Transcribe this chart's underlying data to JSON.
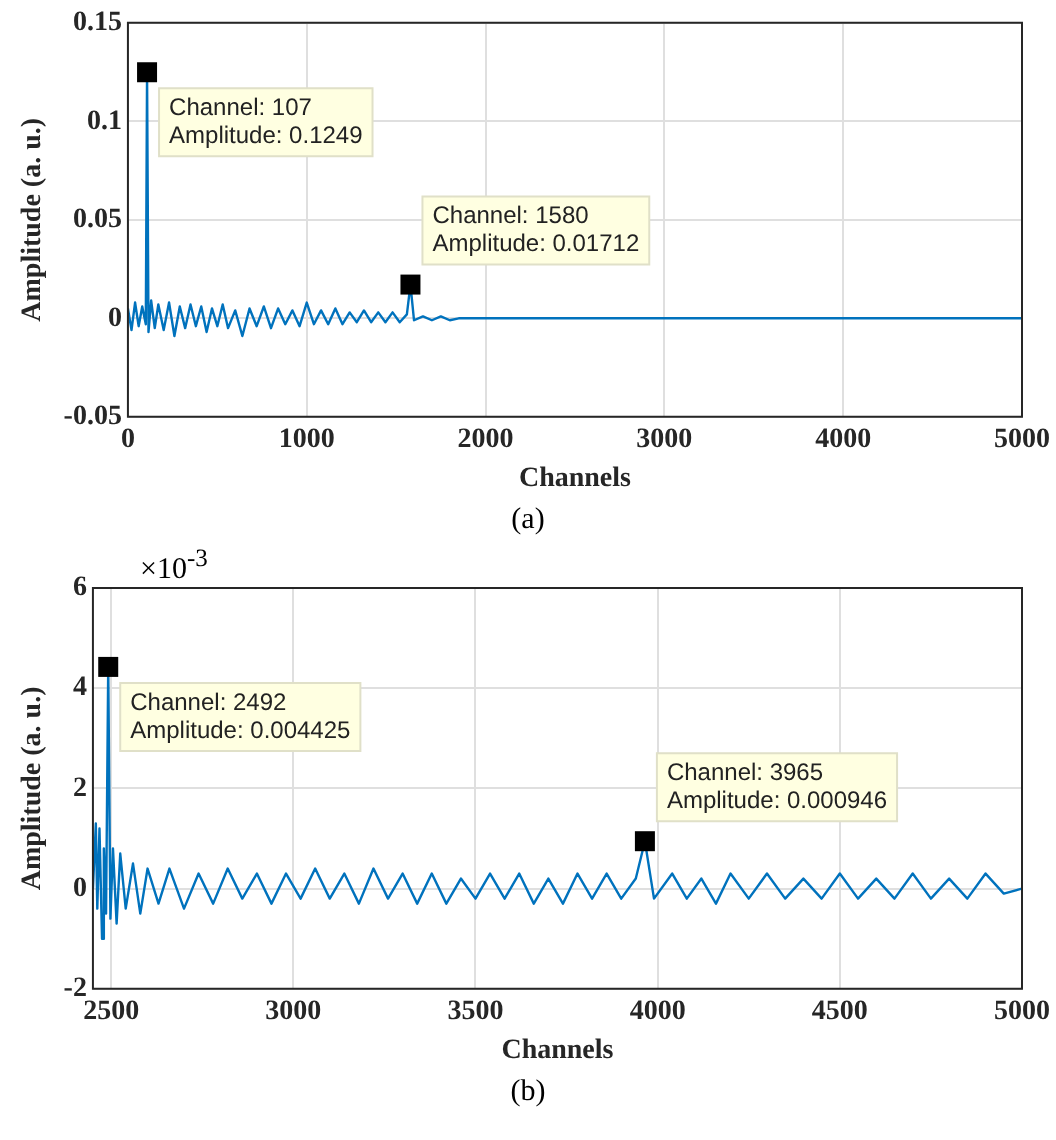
{
  "chart_data": [
    {
      "type": "line",
      "title": "(a)",
      "xlabel": "Channels",
      "ylabel": "Amplitude (a. u.)",
      "xlim": [
        0,
        5000
      ],
      "xticks": [
        0,
        1000,
        2000,
        3000,
        4000,
        5000
      ],
      "ylim": [
        -0.05,
        0.15
      ],
      "yticks": [
        -0.05,
        0,
        0.05,
        0.1,
        0.15
      ],
      "grid": true,
      "series": [
        {
          "color": "#0072bd",
          "x": [
            0,
            20,
            40,
            60,
            80,
            100,
            107,
            115,
            130,
            150,
            170,
            200,
            230,
            260,
            290,
            320,
            350,
            380,
            410,
            440,
            470,
            500,
            530,
            560,
            600,
            640,
            680,
            720,
            760,
            800,
            840,
            880,
            920,
            960,
            1000,
            1040,
            1080,
            1120,
            1160,
            1200,
            1240,
            1280,
            1320,
            1360,
            1400,
            1440,
            1480,
            1520,
            1560,
            1580,
            1600,
            1650,
            1700,
            1750,
            1800,
            1850,
            1900,
            1950,
            2000,
            2100,
            2200,
            2300,
            2400,
            2500,
            2600,
            3000,
            4000,
            5000
          ],
          "values": [
            0.005,
            -0.006,
            0.008,
            -0.004,
            0.006,
            -0.003,
            0.1249,
            -0.007,
            0.009,
            -0.005,
            0.007,
            -0.006,
            0.008,
            -0.009,
            0.006,
            -0.005,
            0.007,
            -0.004,
            0.006,
            -0.007,
            0.005,
            -0.004,
            0.007,
            -0.005,
            0.004,
            -0.009,
            0.005,
            -0.004,
            0.006,
            -0.005,
            0.005,
            -0.003,
            0.004,
            -0.004,
            0.008,
            -0.003,
            0.004,
            -0.003,
            0.005,
            -0.003,
            0.003,
            -0.002,
            0.004,
            -0.002,
            0.003,
            -0.002,
            0.003,
            -0.002,
            0.002,
            0.01712,
            -0.001,
            0.001,
            -0.001,
            0.001,
            -0.001,
            0,
            0,
            0,
            0,
            0,
            0,
            0,
            0,
            0,
            0,
            0,
            0,
            0
          ]
        }
      ],
      "annotations": [
        {
          "text": "Channel: 107\nAmplitude: 0.1249",
          "x": 107,
          "y": 0.1249
        },
        {
          "text": "Channel: 1580\nAmplitude: 0.01712",
          "x": 1580,
          "y": 0.01712
        }
      ]
    },
    {
      "type": "line",
      "title": "(b)",
      "xlabel": "Channels",
      "ylabel": "Amplitude (a. u.)",
      "xlim": [
        2450,
        5000
      ],
      "xticks": [
        2500,
        3000,
        3500,
        4000,
        4500,
        5000
      ],
      "ylim": [
        -2,
        6
      ],
      "yticks": [
        -2,
        0,
        2,
        4,
        6
      ],
      "grid": true,
      "series": [
        {
          "color": "#0072bd",
          "x": [
            2450,
            2458,
            2462,
            2468,
            2475,
            2480,
            2486,
            2492,
            2498,
            2505,
            2515,
            2525,
            2540,
            2560,
            2580,
            2600,
            2630,
            2660,
            2700,
            2740,
            2780,
            2820,
            2860,
            2900,
            2940,
            2980,
            3020,
            3060,
            3100,
            3140,
            3180,
            3220,
            3260,
            3300,
            3340,
            3380,
            3420,
            3460,
            3500,
            3540,
            3580,
            3620,
            3660,
            3700,
            3740,
            3780,
            3820,
            3860,
            3900,
            3940,
            3965,
            3990,
            4040,
            4080,
            4120,
            4160,
            4200,
            4250,
            4300,
            4350,
            4400,
            4450,
            4500,
            4550,
            4600,
            4650,
            4700,
            4750,
            4800,
            4850,
            4900,
            4950,
            5000
          ],
          "values": [
            0,
            1.3,
            -0.4,
            1.2,
            -1,
            0.8,
            -0.5,
            4.425,
            -0.6,
            0.8,
            -0.7,
            0.7,
            -0.4,
            0.5,
            -0.5,
            0.4,
            -0.3,
            0.4,
            -0.4,
            0.3,
            -0.3,
            0.4,
            -0.2,
            0.3,
            -0.3,
            0.3,
            -0.2,
            0.4,
            -0.2,
            0.3,
            -0.3,
            0.4,
            -0.2,
            0.3,
            -0.3,
            0.3,
            -0.3,
            0.2,
            -0.2,
            0.3,
            -0.2,
            0.3,
            -0.3,
            0.2,
            -0.3,
            0.3,
            -0.2,
            0.3,
            -0.2,
            0.2,
            0.946,
            -0.2,
            0.3,
            -0.2,
            0.2,
            -0.3,
            0.3,
            -0.2,
            0.3,
            -0.2,
            0.2,
            -0.2,
            0.3,
            -0.2,
            0.2,
            -0.2,
            0.3,
            -0.2,
            0.2,
            -0.2,
            0.3,
            -0.1,
            0
          ]
        }
      ],
      "annotations": [
        "×10$^{-3}$",
        {
          "text": "Channel: 2492\nAmplitude: 0.004425",
          "x": 2492,
          "y": 4.425
        },
        {
          "text": "Channel: 3965\nAmplitude: 0.000946",
          "x": 3965,
          "y": 0.946
        }
      ]
    }
  ]
}
